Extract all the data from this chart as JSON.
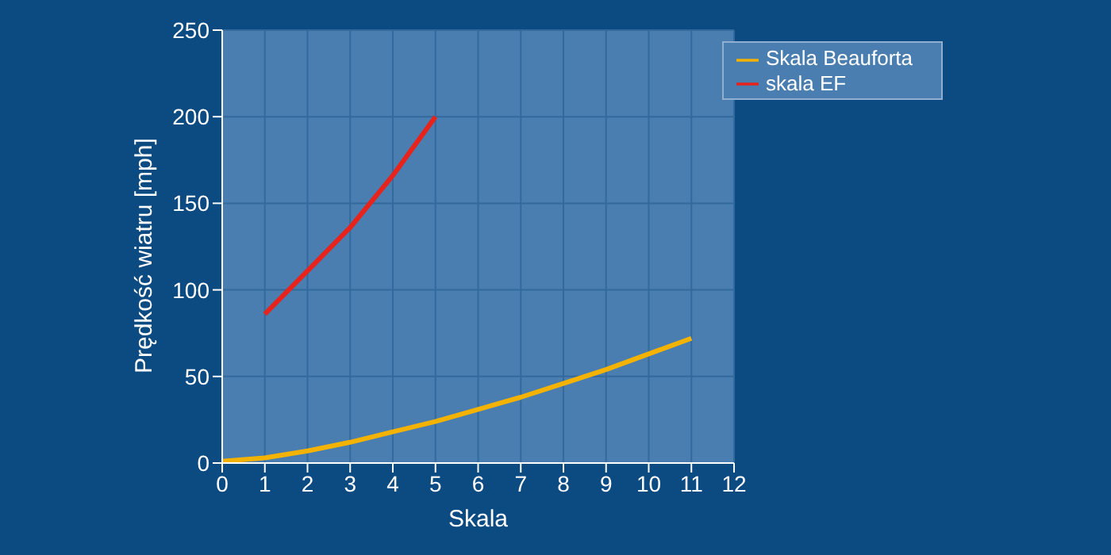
{
  "chart_data": {
    "type": "line",
    "xlabel": "Skala",
    "ylabel": "Prędkość wiatru [mph]",
    "xlim": [
      0,
      12
    ],
    "xticks": [
      0,
      1,
      2,
      3,
      4,
      5,
      6,
      7,
      8,
      9,
      10,
      11,
      12
    ],
    "ylim": [
      0,
      250
    ],
    "yticks": [
      0,
      50,
      100,
      150,
      200,
      250
    ],
    "grid": true,
    "legend": "top right",
    "marker": "none",
    "line_style": "solid",
    "series": [
      {
        "name": "Skala Beauforta",
        "color": "#f5b301",
        "x": [
          0,
          1,
          2,
          3,
          4,
          5,
          6,
          7,
          8,
          9,
          10,
          11
        ],
        "values": [
          1,
          3,
          7,
          12,
          18,
          24,
          31,
          38,
          46,
          54,
          63,
          72
        ]
      },
      {
        "name": "skala EF",
        "color": "#e8231b",
        "x": [
          1,
          2,
          3,
          4,
          5
        ],
        "values": [
          86,
          111,
          136,
          166,
          200
        ]
      }
    ]
  }
}
